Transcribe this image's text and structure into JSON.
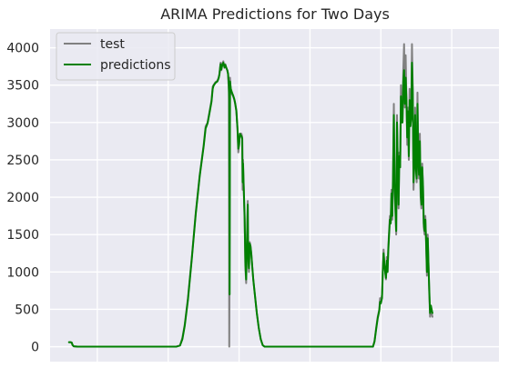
{
  "chart_data": {
    "type": "line",
    "title": "ARIMA Predictions for Two Days",
    "xlabel": "",
    "ylabel": "",
    "ylim": [
      0,
      4000
    ],
    "y_ticks": [
      0,
      500,
      1000,
      1500,
      2000,
      2500,
      3000,
      3500,
      4000
    ],
    "x_range": [
      0,
      1140
    ],
    "x_gridlines": [
      120,
      300,
      480,
      660,
      840,
      1020
    ],
    "grid": true,
    "legend_position": "top-left",
    "colors": {
      "plot_background": "#eaeaf2",
      "grid": "#ffffff"
    },
    "series": [
      {
        "name": "test",
        "color": "#808080",
        "points": [
          [
            48,
            60
          ],
          [
            52,
            62
          ],
          [
            55,
            55
          ],
          [
            57,
            20
          ],
          [
            60,
            5
          ],
          [
            70,
            0
          ],
          [
            100,
            0
          ],
          [
            150,
            0
          ],
          [
            200,
            0
          ],
          [
            250,
            0
          ],
          [
            300,
            0
          ],
          [
            320,
            0
          ],
          [
            330,
            20
          ],
          [
            336,
            120
          ],
          [
            342,
            300
          ],
          [
            350,
            650
          ],
          [
            360,
            1200
          ],
          [
            370,
            1800
          ],
          [
            380,
            2300
          ],
          [
            390,
            2700
          ],
          [
            395,
            2950
          ],
          [
            400,
            3000
          ],
          [
            405,
            3150
          ],
          [
            410,
            3300
          ],
          [
            413,
            3480
          ],
          [
            415,
            3500
          ],
          [
            420,
            3540
          ],
          [
            425,
            3560
          ],
          [
            428,
            3600
          ],
          [
            430,
            3650
          ],
          [
            433,
            3800
          ],
          [
            435,
            3700
          ],
          [
            437,
            3780
          ],
          [
            440,
            3820
          ],
          [
            443,
            3730
          ],
          [
            445,
            3780
          ],
          [
            447,
            3740
          ],
          [
            450,
            3700
          ],
          [
            452,
            3650
          ],
          [
            454,
            3400
          ],
          [
            455,
            0
          ],
          [
            456,
            1500
          ],
          [
            457,
            3600
          ],
          [
            459,
            3400
          ],
          [
            462,
            3380
          ],
          [
            465,
            3350
          ],
          [
            468,
            3300
          ],
          [
            470,
            3250
          ],
          [
            473,
            3150
          ],
          [
            476,
            2900
          ],
          [
            478,
            2600
          ],
          [
            480,
            2700
          ],
          [
            482,
            2850
          ],
          [
            484,
            2850
          ],
          [
            486,
            2850
          ],
          [
            488,
            2800
          ],
          [
            489,
            2100
          ],
          [
            490,
            2500
          ],
          [
            492,
            2050
          ],
          [
            494,
            1700
          ],
          [
            496,
            1050
          ],
          [
            498,
            850
          ],
          [
            500,
            1450
          ],
          [
            502,
            1950
          ],
          [
            503,
            1200
          ],
          [
            505,
            1000
          ],
          [
            507,
            1400
          ],
          [
            509,
            1350
          ],
          [
            511,
            1250
          ],
          [
            513,
            1100
          ],
          [
            516,
            900
          ],
          [
            520,
            700
          ],
          [
            525,
            450
          ],
          [
            530,
            250
          ],
          [
            535,
            100
          ],
          [
            540,
            20
          ],
          [
            545,
            0
          ],
          [
            600,
            0
          ],
          [
            700,
            0
          ],
          [
            800,
            0
          ],
          [
            820,
            0
          ],
          [
            824,
            80
          ],
          [
            828,
            250
          ],
          [
            832,
            400
          ],
          [
            836,
            500
          ],
          [
            838,
            650
          ],
          [
            840,
            600
          ],
          [
            843,
            700
          ],
          [
            845,
            1050
          ],
          [
            847,
            1300
          ],
          [
            849,
            1100
          ],
          [
            851,
            1000
          ],
          [
            853,
            900
          ],
          [
            855,
            1200
          ],
          [
            857,
            1000
          ],
          [
            859,
            1350
          ],
          [
            861,
            1550
          ],
          [
            863,
            1750
          ],
          [
            865,
            1650
          ],
          [
            867,
            2100
          ],
          [
            869,
            1700
          ],
          [
            871,
            2350
          ],
          [
            873,
            3250
          ],
          [
            875,
            2150
          ],
          [
            877,
            1800
          ],
          [
            879,
            1500
          ],
          [
            881,
            3100
          ],
          [
            883,
            2400
          ],
          [
            885,
            1850
          ],
          [
            887,
            2600
          ],
          [
            889,
            2400
          ],
          [
            891,
            3500
          ],
          [
            893,
            3000
          ],
          [
            895,
            3050
          ],
          [
            897,
            3700
          ],
          [
            899,
            4050
          ],
          [
            901,
            3200
          ],
          [
            903,
            3900
          ],
          [
            905,
            3300
          ],
          [
            907,
            2700
          ],
          [
            909,
            3200
          ],
          [
            911,
            2500
          ],
          [
            913,
            3450
          ],
          [
            915,
            2950
          ],
          [
            917,
            3100
          ],
          [
            919,
            4050
          ],
          [
            921,
            3450
          ],
          [
            923,
            2100
          ],
          [
            925,
            2450
          ],
          [
            927,
            3200
          ],
          [
            929,
            2400
          ],
          [
            931,
            2200
          ],
          [
            933,
            3400
          ],
          [
            935,
            2500
          ],
          [
            937,
            2250
          ],
          [
            939,
            2850
          ],
          [
            941,
            2000
          ],
          [
            943,
            1850
          ],
          [
            945,
            2450
          ],
          [
            947,
            2150
          ],
          [
            949,
            1600
          ],
          [
            951,
            1500
          ],
          [
            953,
            1750
          ],
          [
            955,
            1350
          ],
          [
            957,
            950
          ],
          [
            959,
            1500
          ],
          [
            961,
            1100
          ],
          [
            963,
            700
          ],
          [
            965,
            400
          ],
          [
            967,
            550
          ],
          [
            969,
            450
          ],
          [
            971,
            400
          ]
        ]
      },
      {
        "name": "predictions",
        "color": "#008000",
        "points": [
          [
            48,
            60
          ],
          [
            52,
            60
          ],
          [
            55,
            55
          ],
          [
            57,
            25
          ],
          [
            60,
            5
          ],
          [
            70,
            0
          ],
          [
            100,
            0
          ],
          [
            150,
            0
          ],
          [
            200,
            0
          ],
          [
            250,
            0
          ],
          [
            300,
            0
          ],
          [
            320,
            0
          ],
          [
            330,
            15
          ],
          [
            336,
            100
          ],
          [
            342,
            280
          ],
          [
            350,
            620
          ],
          [
            360,
            1180
          ],
          [
            370,
            1780
          ],
          [
            380,
            2280
          ],
          [
            390,
            2680
          ],
          [
            395,
            2920
          ],
          [
            400,
            2990
          ],
          [
            405,
            3130
          ],
          [
            410,
            3280
          ],
          [
            413,
            3450
          ],
          [
            415,
            3490
          ],
          [
            420,
            3530
          ],
          [
            425,
            3550
          ],
          [
            428,
            3590
          ],
          [
            430,
            3640
          ],
          [
            433,
            3780
          ],
          [
            435,
            3710
          ],
          [
            437,
            3760
          ],
          [
            440,
            3800
          ],
          [
            443,
            3740
          ],
          [
            445,
            3770
          ],
          [
            447,
            3740
          ],
          [
            450,
            3700
          ],
          [
            452,
            3650
          ],
          [
            454,
            3500
          ],
          [
            455,
            3300
          ],
          [
            456,
            700
          ],
          [
            457,
            3550
          ],
          [
            459,
            3450
          ],
          [
            462,
            3400
          ],
          [
            465,
            3360
          ],
          [
            468,
            3310
          ],
          [
            470,
            3260
          ],
          [
            473,
            3160
          ],
          [
            476,
            2920
          ],
          [
            478,
            2650
          ],
          [
            480,
            2700
          ],
          [
            482,
            2850
          ],
          [
            484,
            2830
          ],
          [
            486,
            2820
          ],
          [
            488,
            2780
          ],
          [
            489,
            2200
          ],
          [
            490,
            2450
          ],
          [
            492,
            2100
          ],
          [
            494,
            1750
          ],
          [
            496,
            1100
          ],
          [
            498,
            900
          ],
          [
            500,
            1400
          ],
          [
            502,
            1900
          ],
          [
            503,
            1250
          ],
          [
            505,
            1050
          ],
          [
            507,
            1380
          ],
          [
            509,
            1340
          ],
          [
            511,
            1240
          ],
          [
            513,
            1100
          ],
          [
            516,
            900
          ],
          [
            520,
            700
          ],
          [
            525,
            450
          ],
          [
            530,
            250
          ],
          [
            535,
            100
          ],
          [
            540,
            20
          ],
          [
            545,
            0
          ],
          [
            600,
            0
          ],
          [
            700,
            0
          ],
          [
            800,
            0
          ],
          [
            820,
            0
          ],
          [
            824,
            70
          ],
          [
            828,
            230
          ],
          [
            832,
            380
          ],
          [
            836,
            480
          ],
          [
            838,
            600
          ],
          [
            840,
            580
          ],
          [
            843,
            650
          ],
          [
            845,
            1000
          ],
          [
            847,
            1250
          ],
          [
            849,
            1100
          ],
          [
            851,
            1000
          ],
          [
            853,
            920
          ],
          [
            855,
            1150
          ],
          [
            857,
            1000
          ],
          [
            859,
            1300
          ],
          [
            861,
            1500
          ],
          [
            863,
            1700
          ],
          [
            865,
            1650
          ],
          [
            867,
            2050
          ],
          [
            869,
            1750
          ],
          [
            871,
            2250
          ],
          [
            873,
            3100
          ],
          [
            875,
            2200
          ],
          [
            877,
            1850
          ],
          [
            879,
            1550
          ],
          [
            881,
            3000
          ],
          [
            883,
            2450
          ],
          [
            885,
            1900
          ],
          [
            887,
            2550
          ],
          [
            889,
            2400
          ],
          [
            891,
            3350
          ],
          [
            893,
            3000
          ],
          [
            895,
            3000
          ],
          [
            897,
            3550
          ],
          [
            899,
            3700
          ],
          [
            901,
            3250
          ],
          [
            903,
            3600
          ],
          [
            905,
            3300
          ],
          [
            907,
            2800
          ],
          [
            909,
            3150
          ],
          [
            911,
            2550
          ],
          [
            913,
            3300
          ],
          [
            915,
            2950
          ],
          [
            917,
            3050
          ],
          [
            919,
            3800
          ],
          [
            921,
            3400
          ],
          [
            923,
            2200
          ],
          [
            925,
            2450
          ],
          [
            927,
            3100
          ],
          [
            929,
            2400
          ],
          [
            931,
            2250
          ],
          [
            933,
            3250
          ],
          [
            935,
            2500
          ],
          [
            937,
            2300
          ],
          [
            939,
            2750
          ],
          [
            941,
            2100
          ],
          [
            943,
            1900
          ],
          [
            945,
            2400
          ],
          [
            947,
            2150
          ],
          [
            949,
            1650
          ],
          [
            951,
            1550
          ],
          [
            953,
            1700
          ],
          [
            955,
            1400
          ],
          [
            957,
            1000
          ],
          [
            959,
            1450
          ],
          [
            961,
            1100
          ],
          [
            963,
            750
          ],
          [
            965,
            450
          ],
          [
            967,
            550
          ],
          [
            969,
            500
          ],
          [
            971,
            450
          ]
        ]
      }
    ]
  }
}
